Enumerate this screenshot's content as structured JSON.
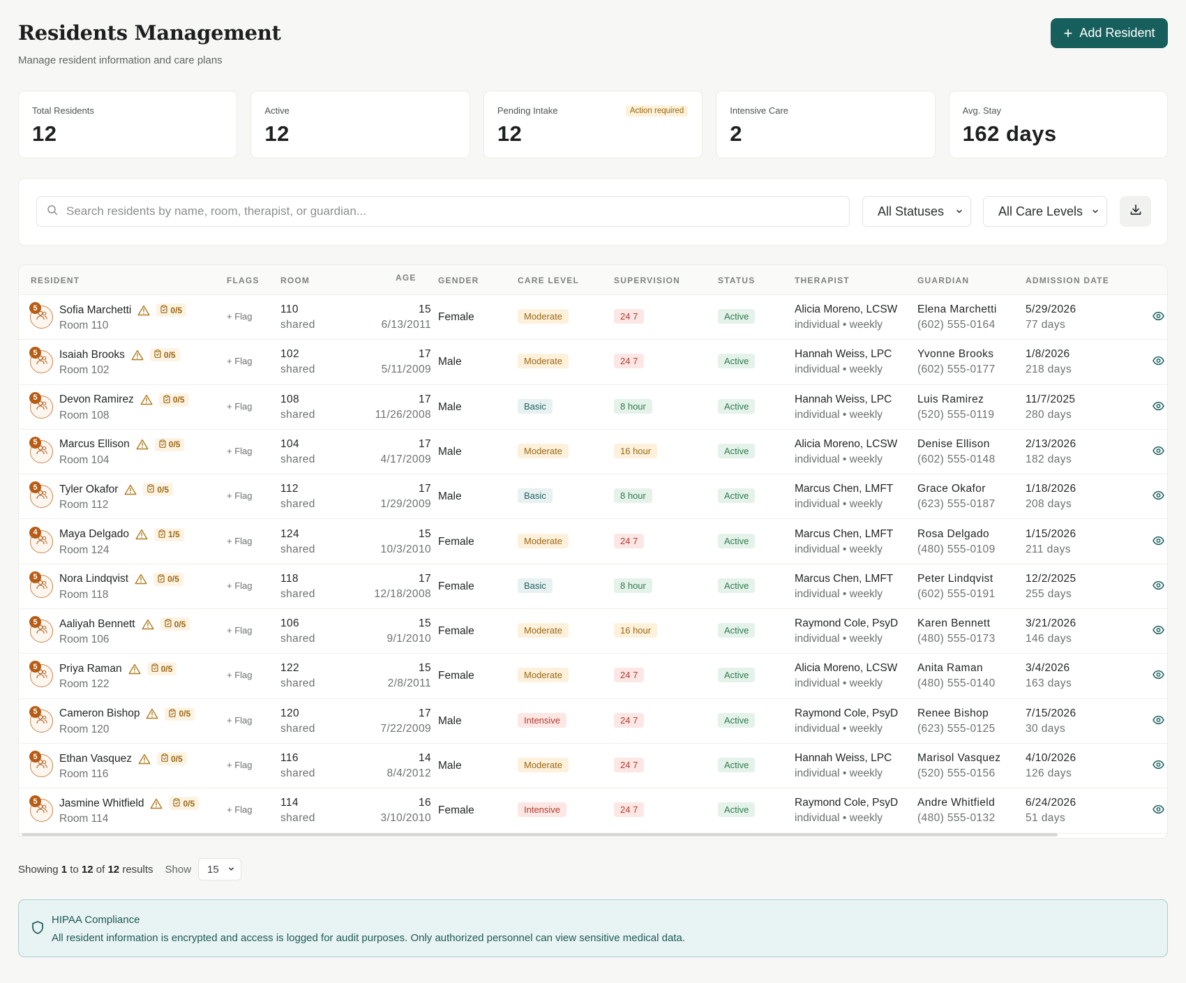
{
  "header": {
    "title": "Residents Management",
    "subtitle": "Manage resident information and care plans",
    "add_button_label": "Add Resident"
  },
  "stats": [
    {
      "label": "Total Residents",
      "value": "12"
    },
    {
      "label": "Active",
      "value": "12"
    },
    {
      "label": "Pending Intake",
      "value": "12",
      "badge": "Action required"
    },
    {
      "label": "Intensive Care",
      "value": "2"
    },
    {
      "label": "Avg. Stay",
      "value": "162 days"
    }
  ],
  "toolbar": {
    "search_placeholder": "Search residents by name, room, therapist, or guardian...",
    "status_filter": "All Statuses",
    "care_filter": "All Care Levels"
  },
  "table": {
    "columns": [
      "Resident",
      "Flags",
      "Room",
      "Age",
      "Gender",
      "Care Level",
      "Supervision",
      "Status",
      "Therapist",
      "Guardian",
      "Admission Date"
    ],
    "flag_label": "Flag",
    "rows": [
      {
        "badge": "5",
        "name": "Sofia Marchetti",
        "tasks": "0/5",
        "room_label": "Room 110",
        "room": "110",
        "room_type": "shared",
        "age": "15",
        "dob": "6/13/2011",
        "gender": "Female",
        "care": "Moderate",
        "supervision": "24 7",
        "status": "Active",
        "therapist": "Alicia Moreno, LCSW",
        "therapy": "individual • weekly",
        "guardian": "Elena Marchetti",
        "phone": "(602) 555-0164",
        "admission": "5/29/2026",
        "stay": "77 days"
      },
      {
        "badge": "5",
        "name": "Isaiah Brooks",
        "tasks": "0/5",
        "room_label": "Room 102",
        "room": "102",
        "room_type": "shared",
        "age": "17",
        "dob": "5/11/2009",
        "gender": "Male",
        "care": "Moderate",
        "supervision": "24 7",
        "status": "Active",
        "therapist": "Hannah Weiss, LPC",
        "therapy": "individual • weekly",
        "guardian": "Yvonne Brooks",
        "phone": "(602) 555-0177",
        "admission": "1/8/2026",
        "stay": "218 days"
      },
      {
        "badge": "5",
        "name": "Devon Ramirez",
        "tasks": "0/5",
        "room_label": "Room 108",
        "room": "108",
        "room_type": "shared",
        "age": "17",
        "dob": "11/26/2008",
        "gender": "Male",
        "care": "Basic",
        "supervision": "8 hour",
        "status": "Active",
        "therapist": "Hannah Weiss, LPC",
        "therapy": "individual • weekly",
        "guardian": "Luis Ramirez",
        "phone": "(520) 555-0119",
        "admission": "11/7/2025",
        "stay": "280 days"
      },
      {
        "badge": "5",
        "name": "Marcus Ellison",
        "tasks": "0/5",
        "room_label": "Room 104",
        "room": "104",
        "room_type": "shared",
        "age": "17",
        "dob": "4/17/2009",
        "gender": "Male",
        "care": "Moderate",
        "supervision": "16 hour",
        "status": "Active",
        "therapist": "Alicia Moreno, LCSW",
        "therapy": "individual • weekly",
        "guardian": "Denise Ellison",
        "phone": "(602) 555-0148",
        "admission": "2/13/2026",
        "stay": "182 days"
      },
      {
        "badge": "5",
        "name": "Tyler Okafor",
        "tasks": "0/5",
        "room_label": "Room 112",
        "room": "112",
        "room_type": "shared",
        "age": "17",
        "dob": "1/29/2009",
        "gender": "Male",
        "care": "Basic",
        "supervision": "8 hour",
        "status": "Active",
        "therapist": "Marcus Chen, LMFT",
        "therapy": "individual • weekly",
        "guardian": "Grace Okafor",
        "phone": "(623) 555-0187",
        "admission": "1/18/2026",
        "stay": "208 days"
      },
      {
        "badge": "4",
        "name": "Maya Delgado",
        "tasks": "1/5",
        "room_label": "Room 124",
        "room": "124",
        "room_type": "shared",
        "age": "15",
        "dob": "10/3/2010",
        "gender": "Female",
        "care": "Moderate",
        "supervision": "24 7",
        "status": "Active",
        "therapist": "Marcus Chen, LMFT",
        "therapy": "individual • weekly",
        "guardian": "Rosa Delgado",
        "phone": "(480) 555-0109",
        "admission": "1/15/2026",
        "stay": "211 days"
      },
      {
        "badge": "5",
        "name": "Nora Lindqvist",
        "tasks": "0/5",
        "room_label": "Room 118",
        "room": "118",
        "room_type": "shared",
        "age": "17",
        "dob": "12/18/2008",
        "gender": "Female",
        "care": "Basic",
        "supervision": "8 hour",
        "status": "Active",
        "therapist": "Marcus Chen, LMFT",
        "therapy": "individual • weekly",
        "guardian": "Peter Lindqvist",
        "phone": "(602) 555-0191",
        "admission": "12/2/2025",
        "stay": "255 days"
      },
      {
        "badge": "5",
        "name": "Aaliyah Bennett",
        "tasks": "0/5",
        "room_label": "Room 106",
        "room": "106",
        "room_type": "shared",
        "age": "15",
        "dob": "9/1/2010",
        "gender": "Female",
        "care": "Moderate",
        "supervision": "16 hour",
        "status": "Active",
        "therapist": "Raymond Cole, PsyD",
        "therapy": "individual • weekly",
        "guardian": "Karen Bennett",
        "phone": "(480) 555-0173",
        "admission": "3/21/2026",
        "stay": "146 days"
      },
      {
        "badge": "5",
        "name": "Priya Raman",
        "tasks": "0/5",
        "room_label": "Room 122",
        "room": "122",
        "room_type": "shared",
        "age": "15",
        "dob": "2/8/2011",
        "gender": "Female",
        "care": "Moderate",
        "supervision": "24 7",
        "status": "Active",
        "therapist": "Alicia Moreno, LCSW",
        "therapy": "individual • weekly",
        "guardian": "Anita Raman",
        "phone": "(480) 555-0140",
        "admission": "3/4/2026",
        "stay": "163 days"
      },
      {
        "badge": "5",
        "name": "Cameron Bishop",
        "tasks": "0/5",
        "room_label": "Room 120",
        "room": "120",
        "room_type": "shared",
        "age": "17",
        "dob": "7/22/2009",
        "gender": "Male",
        "care": "Intensive",
        "supervision": "24 7",
        "status": "Active",
        "therapist": "Raymond Cole, PsyD",
        "therapy": "individual • weekly",
        "guardian": "Renee Bishop",
        "phone": "(623) 555-0125",
        "admission": "7/15/2026",
        "stay": "30 days"
      },
      {
        "badge": "5",
        "name": "Ethan Vasquez",
        "tasks": "0/5",
        "room_label": "Room 116",
        "room": "116",
        "room_type": "shared",
        "age": "14",
        "dob": "8/4/2012",
        "gender": "Male",
        "care": "Moderate",
        "supervision": "24 7",
        "status": "Active",
        "therapist": "Hannah Weiss, LPC",
        "therapy": "individual • weekly",
        "guardian": "Marisol Vasquez",
        "phone": "(520) 555-0156",
        "admission": "4/10/2026",
        "stay": "126 days"
      },
      {
        "badge": "5",
        "name": "Jasmine Whitfield",
        "tasks": "0/5",
        "room_label": "Room 114",
        "room": "114",
        "room_type": "shared",
        "age": "16",
        "dob": "3/10/2010",
        "gender": "Female",
        "care": "Intensive",
        "supervision": "24 7",
        "status": "Active",
        "therapist": "Raymond Cole, PsyD",
        "therapy": "individual • weekly",
        "guardian": "Andre Whitfield",
        "phone": "(480) 555-0132",
        "admission": "6/24/2026",
        "stay": "51 days"
      }
    ]
  },
  "pagination": {
    "prefix": "Showing",
    "from": "1",
    "to_word": "to",
    "to": "12",
    "of_word": "of",
    "total": "12",
    "suffix": "results",
    "show_label": "Show",
    "page_size": "15"
  },
  "notice": {
    "title": "HIPAA Compliance",
    "text": "All resident information is encrypted and access is logged for audit purposes. Only authorized personnel can view sensitive medical data."
  },
  "icons": {
    "add": "plus-icon",
    "search": "search-icon",
    "export": "download-icon",
    "avatar": "users-icon",
    "warning": "warning-triangle-icon",
    "tasks": "clipboard-icon",
    "view": "eye-icon",
    "notice": "shield-icon"
  },
  "colors": {
    "primary": "#175f5c",
    "warning": "#9a6612",
    "danger": "#b23a2f",
    "success": "#2f7a4d"
  }
}
